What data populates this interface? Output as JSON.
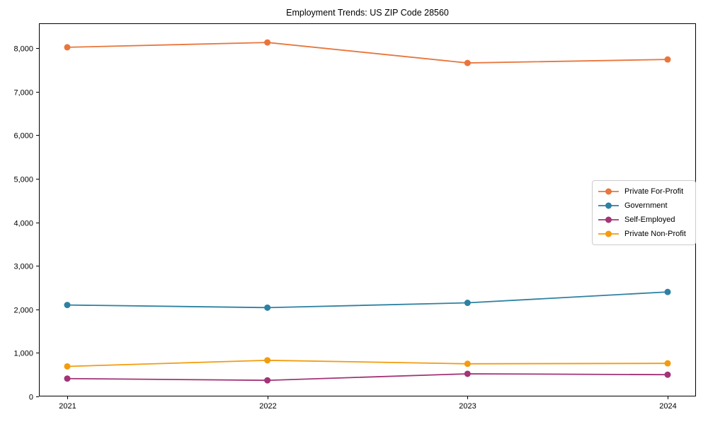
{
  "figure": {
    "title": "Employment Trends: US ZIP Code 28560"
  },
  "chart_data": {
    "type": "line",
    "title": "Employment Trends: US ZIP Code 28560",
    "xlabel": "",
    "ylabel": "",
    "grid": false,
    "legend_position": "center-right",
    "marker": "circle",
    "categories": [
      "2021",
      "2022",
      "2023",
      "2024"
    ],
    "y_ticks": [
      0,
      1000,
      2000,
      3000,
      4000,
      5000,
      6000,
      7000,
      8000
    ],
    "y_tick_labels": [
      "0",
      "1,000",
      "2,000",
      "3,000",
      "4,000",
      "5,000",
      "6,000",
      "7,000",
      "8,000"
    ],
    "ylim": [
      0,
      8570
    ],
    "axis_color": "#000000",
    "legend_border_color": "#cccccc",
    "series": [
      {
        "name": "Private For-Profit",
        "color": "#e8763c",
        "values": [
          8020,
          8130,
          7660,
          7740
        ]
      },
      {
        "name": "Government",
        "color": "#2e81a2",
        "values": [
          2100,
          2040,
          2150,
          2400
        ]
      },
      {
        "name": "Self-Employed",
        "color": "#a23477",
        "values": [
          410,
          370,
          520,
          500
        ]
      },
      {
        "name": "Private Non-Profit",
        "color": "#f29c0e",
        "values": [
          690,
          830,
          750,
          760
        ]
      }
    ]
  }
}
